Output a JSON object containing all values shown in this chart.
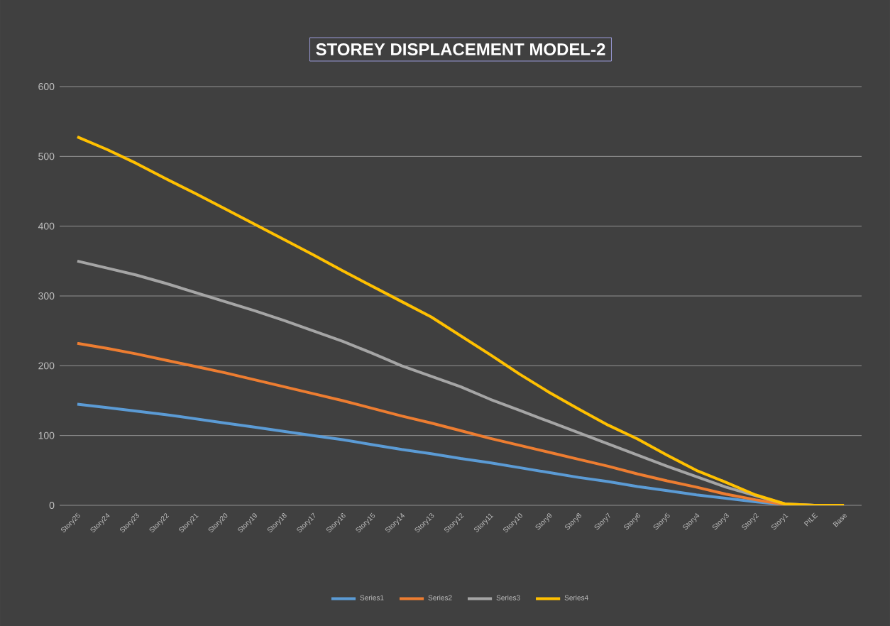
{
  "chart_data": {
    "type": "line",
    "title": "STOREY DISPLACEMENT MODEL-2",
    "categories": [
      "Story25",
      "Story24",
      "Story23",
      "Story22",
      "Story21",
      "Story20",
      "Story19",
      "Story18",
      "Story17",
      "Story16",
      "Story15",
      "Story14",
      "Story13",
      "Story12",
      "Story11",
      "Story10",
      "Story9",
      "Story8",
      "Story7",
      "Story6",
      "Story5",
      "Story4",
      "Story3",
      "Story2",
      "Story1",
      "PILE",
      "Base"
    ],
    "series": [
      {
        "name": "Series1",
        "color": "#5b9bd5",
        "values": [
          145,
          140,
          135,
          130,
          124,
          118,
          112,
          106,
          100,
          94,
          87,
          80,
          74,
          67,
          61,
          54,
          47,
          40,
          34,
          27,
          21,
          15,
          10,
          5,
          1,
          0,
          0
        ]
      },
      {
        "name": "Series2",
        "color": "#ed7d31",
        "values": [
          232,
          225,
          217,
          208,
          199,
          190,
          180,
          170,
          160,
          150,
          139,
          128,
          118,
          107,
          96,
          86,
          76,
          66,
          56,
          45,
          35,
          26,
          16,
          8,
          1,
          0,
          0
        ]
      },
      {
        "name": "Series3",
        "color": "#a5a5a5",
        "values": [
          350,
          340,
          330,
          318,
          305,
          292,
          279,
          265,
          250,
          235,
          218,
          200,
          185,
          170,
          152,
          136,
          120,
          104,
          88,
          72,
          56,
          41,
          26,
          14,
          2,
          0,
          0
        ]
      },
      {
        "name": "Series4",
        "color": "#ffc000",
        "values": [
          528,
          510,
          490,
          468,
          447,
          425,
          403,
          381,
          359,
          336,
          314,
          292,
          270,
          243,
          216,
          188,
          162,
          138,
          115,
          95,
          72,
          50,
          33,
          15,
          2,
          0,
          0
        ]
      }
    ],
    "ylim": [
      0,
      600
    ],
    "yticks": [
      0,
      100,
      200,
      300,
      400,
      500,
      600
    ],
    "grid": "y",
    "legend": "bottom",
    "marker": "none",
    "line_style": "solid"
  }
}
